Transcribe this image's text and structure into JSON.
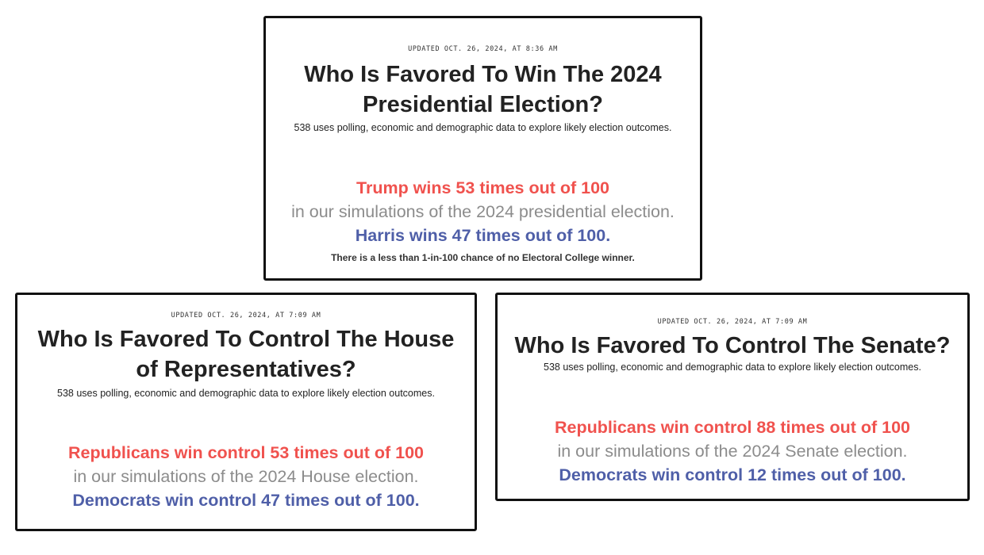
{
  "president": {
    "updated": "UPDATED OCT. 26, 2024, AT 8:36 AM",
    "title_line1": "Who Is Favored To Win The 2024",
    "title_line2": "Presidential Election?",
    "subtitle": "538 uses polling, economic and demographic data to explore likely election outcomes.",
    "red_line": "Trump wins 53 times out of 100",
    "gray_line": "in our simulations of the 2024 presidential election.",
    "blue_line": "Harris wins 47 times out of 100.",
    "note": "There is a less than 1-in-100 chance of no Electoral College winner."
  },
  "house": {
    "updated": "UPDATED OCT. 26, 2024, AT 7:09 AM",
    "title_line1": "Who Is Favored To Control The House",
    "title_line2": "of Representatives?",
    "subtitle": "538 uses polling, economic and demographic data to explore likely election outcomes.",
    "red_line": "Republicans win control 53 times out of 100",
    "gray_line": "in our simulations of the 2024 House election.",
    "blue_line": "Democrats win control 47 times out of 100."
  },
  "senate": {
    "updated": "UPDATED OCT. 26, 2024, AT 7:09 AM",
    "title": "Who Is Favored To Control The Senate?",
    "subtitle": "538 uses polling, economic and demographic data to explore likely election outcomes.",
    "red_line": "Republicans win control 88 times out of 100",
    "gray_line": "in our simulations of the 2024 Senate election.",
    "blue_line": "Democrats win control 12 times out of 100."
  },
  "colors": {
    "republican": "#f0524e",
    "democrat": "#4f5fa8",
    "neutral_text": "#8c8c8c",
    "border": "#111111"
  }
}
